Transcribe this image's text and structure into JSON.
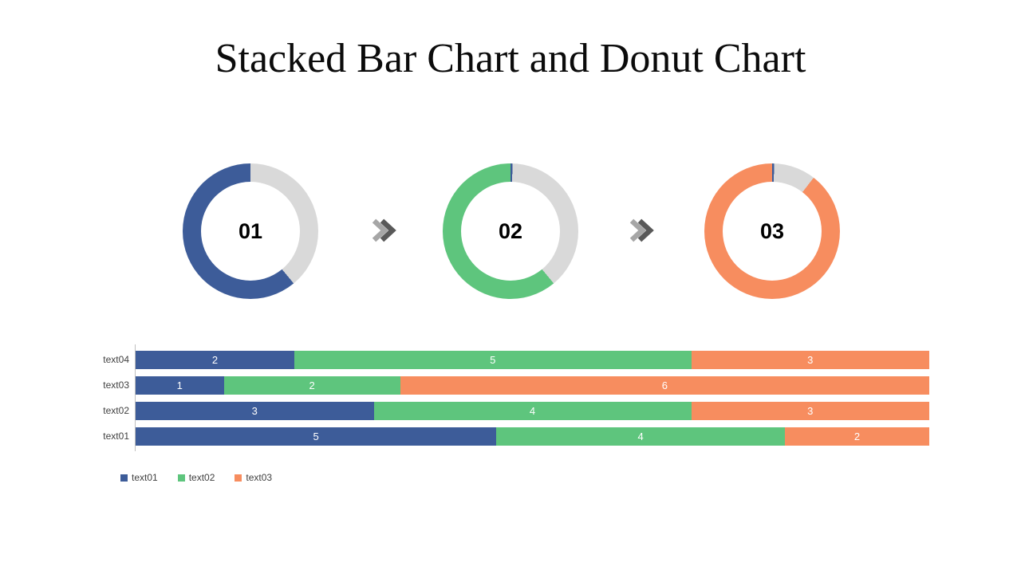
{
  "title": "Stacked Bar Chart and Donut Chart",
  "icons": {
    "step_connector": "double-chevron-right"
  },
  "colors": {
    "series_blue": "#3D5C99",
    "series_green": "#5EC57D",
    "series_orange": "#F78D5F",
    "remainder_gray": "#D9D9D9",
    "axis_line": "#BFBFBF",
    "label_text": "#404040",
    "value_text": "#FFFFFF",
    "chevron_light": "#A6A6A6",
    "chevron_dark": "#595959"
  },
  "chart_data": [
    {
      "type": "pie",
      "variant": "donut",
      "center_label": "01",
      "start_angle": "top",
      "direction": "clockwise",
      "segments": [
        {
          "name": "remainder",
          "pct": 39,
          "color": "#D9D9D9"
        },
        {
          "name": "text01",
          "pct": 61,
          "color": "#3D5C99"
        }
      ]
    },
    {
      "type": "pie",
      "variant": "donut",
      "center_label": "02",
      "start_angle": "top",
      "direction": "clockwise",
      "segments": [
        {
          "name": "text01",
          "pct": 0.5,
          "color": "#3D5C99"
        },
        {
          "name": "remainder",
          "pct": 38.5,
          "color": "#D9D9D9"
        },
        {
          "name": "text02",
          "pct": 61,
          "color": "#5EC57D"
        }
      ]
    },
    {
      "type": "pie",
      "variant": "donut",
      "center_label": "03",
      "start_angle": "top",
      "direction": "clockwise",
      "segments": [
        {
          "name": "text01",
          "pct": 0.5,
          "color": "#3D5C99"
        },
        {
          "name": "remainder",
          "pct": 10,
          "color": "#D9D9D9"
        },
        {
          "name": "text03",
          "pct": 89.5,
          "color": "#F78D5F"
        }
      ]
    },
    {
      "type": "bar",
      "orientation": "horizontal",
      "stacked": true,
      "normalized_full_width": true,
      "series": [
        {
          "name": "text01",
          "color": "#3D5C99"
        },
        {
          "name": "text02",
          "color": "#5EC57D"
        },
        {
          "name": "text03",
          "color": "#F78D5F"
        }
      ],
      "rows_top_to_bottom": [
        {
          "category": "text04",
          "values": [
            2,
            5,
            3
          ]
        },
        {
          "category": "text03",
          "values": [
            1,
            2,
            6
          ]
        },
        {
          "category": "text02",
          "values": [
            3,
            4,
            3
          ]
        },
        {
          "category": "text01",
          "values": [
            5,
            4,
            2
          ]
        }
      ],
      "legend": {
        "position": "bottom-left",
        "entries": [
          "text01",
          "text02",
          "text03"
        ]
      }
    }
  ]
}
